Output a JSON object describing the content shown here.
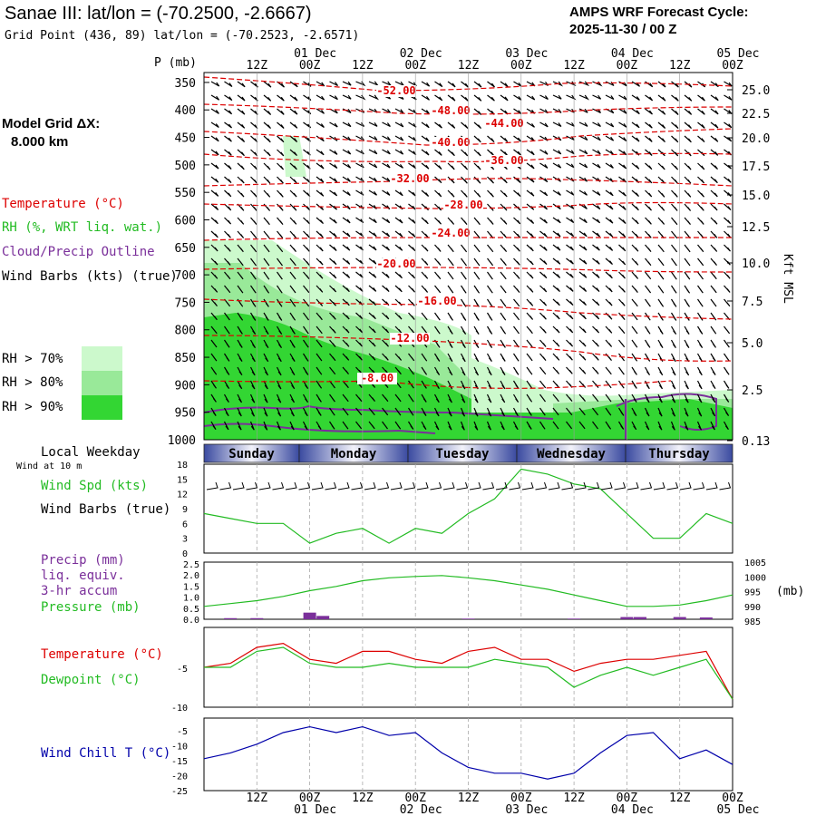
{
  "header": {
    "title": "Sanae III:  lat/lon = (-70.2500, -2.6667)",
    "grid_point": "Grid Point (436, 89) lat/lon = (-70.2523, -2.6571)",
    "cycle_line1": "AMPS WRF Forecast Cycle:",
    "cycle_line2": "2025-11-30 / 00  Z"
  },
  "model_grid": {
    "label": "Model Grid ΔX:",
    "value": "8.000 km"
  },
  "legend": {
    "temperature": "Temperature (°C)",
    "rh": "RH (%, WRT liq. wat.)",
    "cloud": "Cloud/Precip Outline",
    "wind": "Wind Barbs (kts) (true)",
    "rh70": "RH > 70%",
    "rh80": "RH > 80%",
    "rh90": "RH > 90%",
    "colors": {
      "rh70": "#ccf9cc",
      "rh80": "#99e999",
      "rh90": "#33d633",
      "temp": "#dd0000",
      "cloud": "#7a2f9a",
      "green": "#22bb22",
      "blue": "#0000aa"
    }
  },
  "axis": {
    "p_label": "P (mb)",
    "kft_label": "Kft MSL",
    "time_top": [
      "12Z",
      "00Z",
      "12Z",
      "00Z",
      "12Z",
      "00Z",
      "12Z",
      "00Z",
      "12Z",
      "00Z"
    ],
    "dates_top": [
      "01 Dec",
      "02 Dec",
      "03 Dec",
      "04 Dec",
      "05 Dec"
    ],
    "time_bottom": [
      "12Z",
      "00Z",
      "12Z",
      "00Z",
      "12Z",
      "00Z",
      "12Z",
      "00Z",
      "12Z",
      "00Z"
    ],
    "dates_bottom": [
      "01 Dec",
      "02 Dec",
      "03 Dec",
      "04 Dec",
      "05 Dec"
    ]
  },
  "cross_section": {
    "pressure_levels": [
      "350",
      "400",
      "450",
      "500",
      "550",
      "600",
      "650",
      "700",
      "750",
      "800",
      "850",
      "900",
      "950",
      "1000"
    ],
    "height_levels": [
      "25.0",
      "22.5",
      "20.0",
      "17.5",
      "15.0",
      "12.5",
      "10.0",
      "7.5",
      "5.0",
      "2.5",
      "0.13"
    ],
    "temp_labels": [
      "-52.00",
      "-48.00",
      "-44.00",
      "-40.00",
      "-36.00",
      "-32.00",
      "-28.00",
      "-24.00",
      "-20.00",
      "-16.00",
      "-12.00",
      "-8.00"
    ]
  },
  "weekday": {
    "label": "Local Weekday",
    "sublabel": "Wind at 10 m",
    "days": [
      "Sunday",
      "Monday",
      "Tuesday",
      "Wednesday",
      "Thursday"
    ]
  },
  "panels": {
    "wind": {
      "label1": "Wind Spd (kts)",
      "label2": "Wind Barbs (true)",
      "ticks": [
        "18",
        "15",
        "12",
        "9",
        "6",
        "3",
        "0"
      ]
    },
    "precip": {
      "label1": "Precip (mm)",
      "label2": "liq. equiv.",
      "label3": "3-hr accum",
      "label4": "Pressure (mb)",
      "left_ticks": [
        "2.5",
        "2.0",
        "1.5",
        "1.0",
        "0.5",
        "0.0"
      ],
      "right_ticks": [
        "1005",
        "1000",
        "995",
        "990",
        "985"
      ],
      "unit": "(mb)"
    },
    "temp": {
      "label1": "Temperature (°C)",
      "label2": "Dewpoint (°C)",
      "ticks": [
        "-5",
        "-10"
      ]
    },
    "chill": {
      "label": "Wind Chill T (°C)",
      "ticks": [
        "-5",
        "-10",
        "-15",
        "-20",
        "-25"
      ]
    }
  },
  "chart_data": [
    {
      "type": "line",
      "title": "Wind Spd (kts)",
      "ylim": [
        0,
        18
      ],
      "x_hours": [
        0,
        6,
        12,
        18,
        24,
        30,
        36,
        42,
        48,
        54,
        60,
        66,
        72,
        78,
        84,
        90,
        96,
        102,
        108,
        114,
        120
      ],
      "series": [
        {
          "name": "Wind Spd",
          "values": [
            8,
            7,
            6,
            6,
            2,
            4,
            5,
            2,
            5,
            4,
            8,
            11,
            17,
            16,
            14,
            13,
            8,
            3,
            3,
            8,
            6
          ]
        }
      ]
    },
    {
      "type": "line",
      "title": "Pressure (mb)",
      "ylim": [
        985,
        1006
      ],
      "x_hours": [
        0,
        6,
        12,
        18,
        24,
        30,
        36,
        42,
        48,
        54,
        60,
        66,
        72,
        78,
        84,
        90,
        96,
        102,
        108,
        114,
        120
      ],
      "series": [
        {
          "name": "Pressure",
          "values": [
            989.5,
            990.5,
            991.5,
            993,
            995,
            996.5,
            998.5,
            999.5,
            1000,
            1000.3,
            999.5,
            998.5,
            997,
            995.5,
            993.5,
            991.5,
            989.5,
            989.5,
            990,
            991.5,
            993.5
          ]
        }
      ]
    },
    {
      "type": "bar",
      "title": "Precip (mm) 3-hr accum",
      "ylim": [
        0,
        2.5
      ],
      "x_hours": [
        6,
        12,
        24,
        27,
        60,
        84,
        96,
        99,
        108,
        114
      ],
      "values": [
        0.05,
        0.05,
        0.3,
        0.15,
        0.03,
        0.03,
        0.1,
        0.1,
        0.1,
        0.08
      ]
    },
    {
      "type": "line",
      "title": "Temperature / Dewpoint (°C)",
      "ylim": [
        -10,
        0
      ],
      "x_hours": [
        0,
        6,
        12,
        18,
        24,
        30,
        36,
        42,
        48,
        54,
        60,
        66,
        72,
        78,
        84,
        90,
        96,
        102,
        108,
        114,
        120
      ],
      "series": [
        {
          "name": "Temperature",
          "values": [
            -5,
            -4.5,
            -2.5,
            -2,
            -4,
            -4.5,
            -3,
            -3,
            -4,
            -4.5,
            -3,
            -2.5,
            -4,
            -4,
            -5.5,
            -4.5,
            -4,
            -4,
            -3.5,
            -3,
            -9
          ]
        },
        {
          "name": "Dewpoint",
          "values": [
            -5,
            -5,
            -3,
            -2.5,
            -4.5,
            -5,
            -5,
            -4.5,
            -5,
            -5,
            -5,
            -4,
            -4.5,
            -5,
            -7.5,
            -6,
            -5,
            -6,
            -5,
            -4,
            -9
          ]
        }
      ]
    },
    {
      "type": "line",
      "title": "Wind Chill T (°C)",
      "ylim": [
        -25,
        0
      ],
      "x_hours": [
        0,
        6,
        12,
        18,
        24,
        30,
        36,
        42,
        48,
        54,
        60,
        66,
        72,
        78,
        84,
        90,
        96,
        102,
        108,
        114,
        120
      ],
      "series": [
        {
          "name": "Wind Chill",
          "values": [
            -14,
            -12,
            -9,
            -5,
            -3,
            -5,
            -3,
            -6,
            -5,
            -12,
            -17,
            -19,
            -19,
            -21,
            -19,
            -12,
            -6,
            -5,
            -14,
            -11,
            -16
          ]
        }
      ]
    }
  ]
}
